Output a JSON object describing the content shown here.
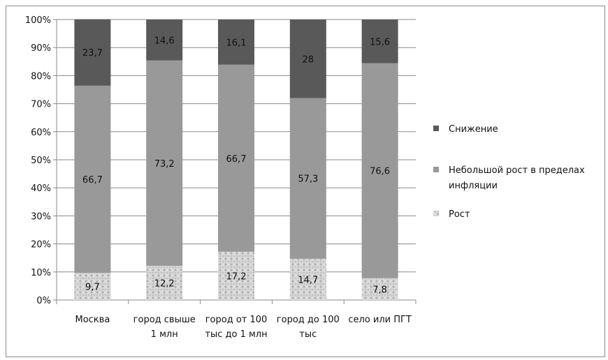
{
  "chart_data": {
    "type": "bar",
    "stacked": "percent",
    "categories": [
      [
        "Москва"
      ],
      [
        "город свыше",
        "1 млн"
      ],
      [
        "город от 100",
        "тыс до 1 млн"
      ],
      [
        "город  до 100",
        "тыс"
      ],
      [
        "село или ПГТ"
      ]
    ],
    "series": [
      {
        "name": "Рост",
        "values": [
          9.7,
          12.2,
          17.2,
          14.7,
          7.8
        ],
        "labels": [
          "9,7",
          "12,2",
          "17,2",
          "14,7",
          "7,8"
        ],
        "color": "#d4d4d4"
      },
      {
        "name": "Небольшой рост в пределах инфляции",
        "values": [
          66.7,
          73.2,
          66.7,
          57.3,
          76.6
        ],
        "labels": [
          "66,7",
          "73,2",
          "66,7",
          "57,3",
          "76,6"
        ],
        "color": "#999999"
      },
      {
        "name": "Снижение",
        "values": [
          23.7,
          14.6,
          16.1,
          28,
          15.6
        ],
        "labels": [
          "23,7",
          "14,6",
          "16,1",
          "28",
          "15,6"
        ],
        "color": "#595959"
      }
    ],
    "legend_order": [
      2,
      1,
      0
    ],
    "legend_lines": [
      [
        "Снижение"
      ],
      [
        "Небольшой рост в пределах",
        "инфляции"
      ],
      [
        "Рост"
      ]
    ],
    "y_ticks": [
      "0%",
      "10%",
      "20%",
      "30%",
      "40%",
      "50%",
      "60%",
      "70%",
      "80%",
      "90%",
      "100%"
    ],
    "ylim": [
      0,
      100
    ],
    "grid": true,
    "legend_position": "right",
    "title": "",
    "xlabel": "",
    "ylabel": ""
  }
}
